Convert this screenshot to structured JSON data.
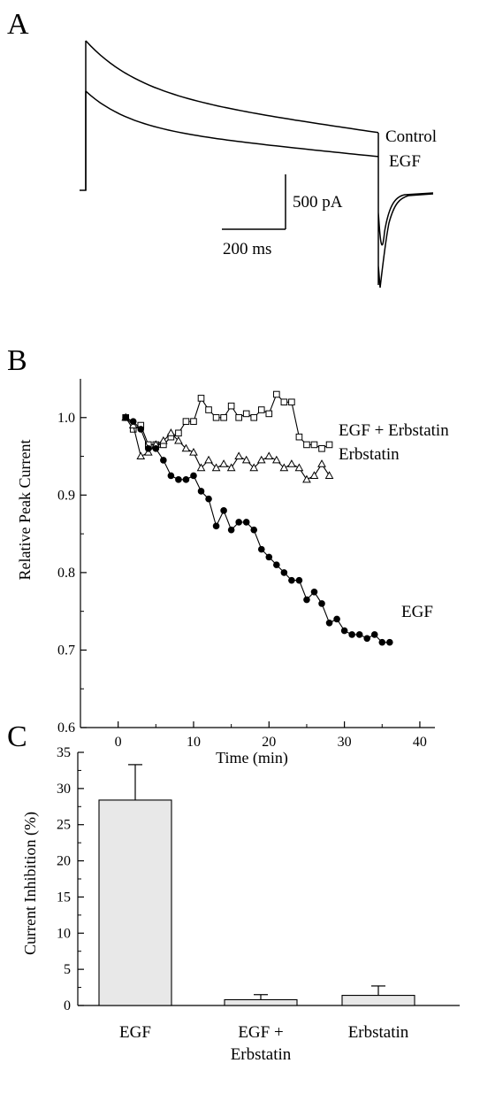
{
  "panels": {
    "a": {
      "letter": "A"
    },
    "b": {
      "letter": "B"
    },
    "c": {
      "letter": "C"
    }
  },
  "chart_data": [
    {
      "panel": "A",
      "type": "line",
      "title": "",
      "series": [
        {
          "name": "Control"
        },
        {
          "name": "EGF"
        }
      ],
      "scale_bars": {
        "current": "500 pA",
        "time": "200 ms"
      }
    },
    {
      "panel": "B",
      "type": "line",
      "title": "",
      "xlabel": "Time (min)",
      "ylabel": "Relative Peak Current",
      "xlim": [
        -5,
        42
      ],
      "ylim": [
        0.6,
        1.05
      ],
      "xticks": [
        0,
        10,
        20,
        30,
        40
      ],
      "yticks": [
        0.6,
        0.7,
        0.8,
        0.9,
        1.0
      ],
      "series": [
        {
          "name": "EGF + Erbstatin",
          "marker": "open-square",
          "x": [
            1,
            2,
            3,
            4,
            5,
            6,
            7,
            8,
            9,
            10,
            11,
            12,
            13,
            14,
            15,
            16,
            17,
            18,
            19,
            20,
            21,
            22,
            23,
            24,
            25,
            26,
            27,
            28
          ],
          "y": [
            1.0,
            0.985,
            0.99,
            0.965,
            0.965,
            0.965,
            0.975,
            0.98,
            0.995,
            0.995,
            1.025,
            1.01,
            1.0,
            1.0,
            1.015,
            1.0,
            1.005,
            1.0,
            1.01,
            1.005,
            1.03,
            1.02,
            1.02,
            0.975,
            0.965,
            0.965,
            0.96,
            0.965
          ]
        },
        {
          "name": "Erbstatin",
          "marker": "open-triangle",
          "x": [
            1,
            2,
            3,
            4,
            5,
            6,
            7,
            8,
            9,
            10,
            11,
            12,
            13,
            14,
            15,
            16,
            17,
            18,
            19,
            20,
            21,
            22,
            23,
            24,
            25,
            26,
            27,
            28
          ],
          "y": [
            1.0,
            0.99,
            0.95,
            0.955,
            0.965,
            0.97,
            0.98,
            0.97,
            0.96,
            0.955,
            0.935,
            0.945,
            0.935,
            0.94,
            0.935,
            0.95,
            0.945,
            0.935,
            0.945,
            0.95,
            0.945,
            0.935,
            0.94,
            0.935,
            0.92,
            0.925,
            0.94,
            0.925
          ]
        },
        {
          "name": "EGF",
          "marker": "filled-circle",
          "x": [
            1,
            2,
            3,
            4,
            5,
            6,
            7,
            8,
            9,
            10,
            11,
            12,
            13,
            14,
            15,
            16,
            17,
            18,
            19,
            20,
            21,
            22,
            23,
            24,
            25,
            26,
            27,
            28,
            29,
            30,
            31,
            32,
            33,
            34,
            35,
            36
          ],
          "y": [
            1.0,
            0.995,
            0.985,
            0.96,
            0.96,
            0.945,
            0.925,
            0.92,
            0.92,
            0.925,
            0.905,
            0.895,
            0.86,
            0.88,
            0.855,
            0.865,
            0.865,
            0.855,
            0.83,
            0.82,
            0.81,
            0.8,
            0.79,
            0.79,
            0.765,
            0.775,
            0.76,
            0.735,
            0.74,
            0.725,
            0.72,
            0.72,
            0.715,
            0.72,
            0.71,
            0.71
          ]
        }
      ]
    },
    {
      "panel": "C",
      "type": "bar",
      "title": "",
      "ylabel": "Current Inhibition (%)",
      "ylim": [
        0,
        35
      ],
      "yticks": [
        0,
        5,
        10,
        15,
        20,
        25,
        30,
        35
      ],
      "categories": [
        {
          "lines": [
            "EGF"
          ]
        },
        {
          "lines": [
            "EGF +",
            "Erbstatin"
          ]
        },
        {
          "lines": [
            "Erbstatin"
          ]
        }
      ],
      "values": [
        28.4,
        0.8,
        1.4
      ],
      "errors": [
        4.9,
        0.7,
        1.3
      ],
      "bar_color": "#e8e8e8"
    }
  ]
}
